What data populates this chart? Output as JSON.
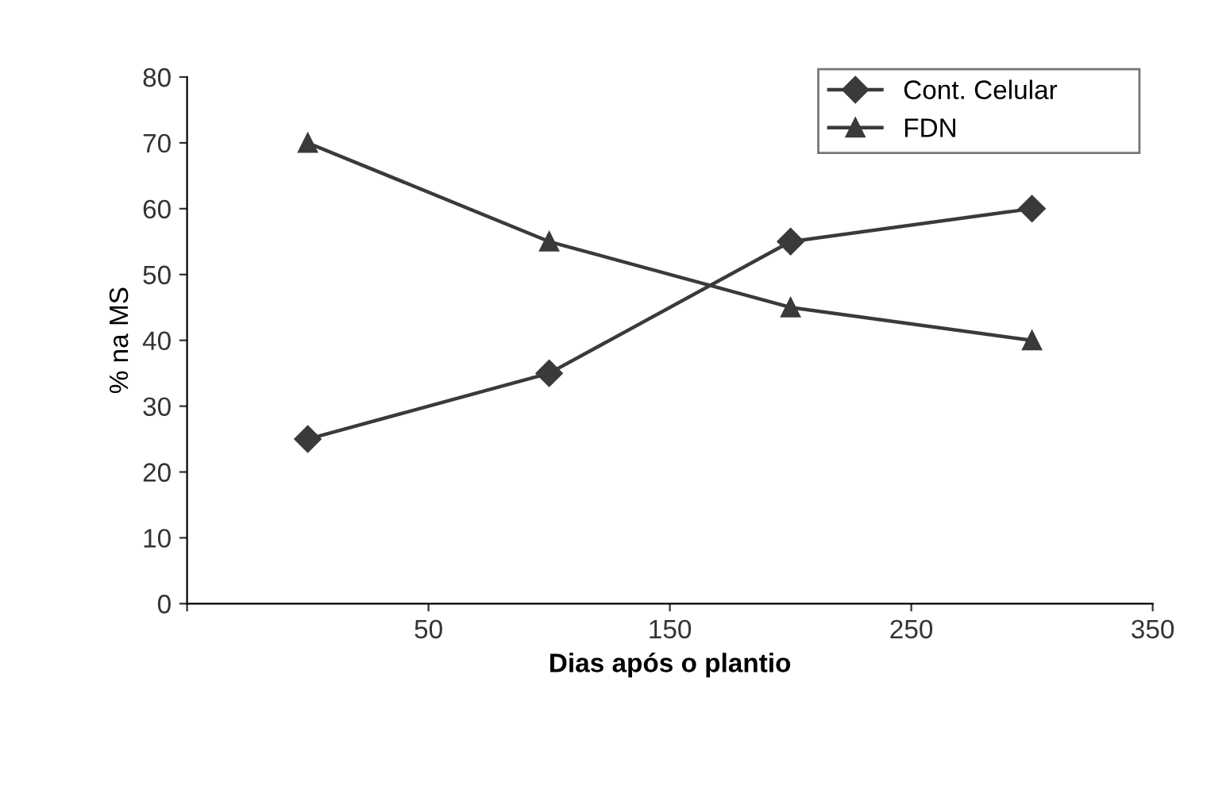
{
  "chart_data": {
    "type": "line",
    "xlabel": "Dias após o plantio",
    "ylabel": "% na MS",
    "x": [
      0,
      100,
      200,
      300
    ],
    "series": [
      {
        "name": "Cont. Celular",
        "color": "#3a3a3a",
        "marker": "diamond",
        "values": [
          25,
          35,
          55,
          60
        ]
      },
      {
        "name": "FDN",
        "color": "#3a3a3a",
        "marker": "triangle",
        "values": [
          70,
          55,
          45,
          40
        ]
      }
    ],
    "xlim": [
      -50,
      350
    ],
    "xticks": [
      {
        "value": -50,
        "label": null
      },
      50,
      150,
      250,
      350
    ],
    "ylim": [
      0,
      80
    ],
    "yticks": [
      0,
      10,
      20,
      30,
      40,
      50,
      60,
      70,
      80
    ],
    "grid": false,
    "legend": "top right",
    "line_style": "solid"
  }
}
